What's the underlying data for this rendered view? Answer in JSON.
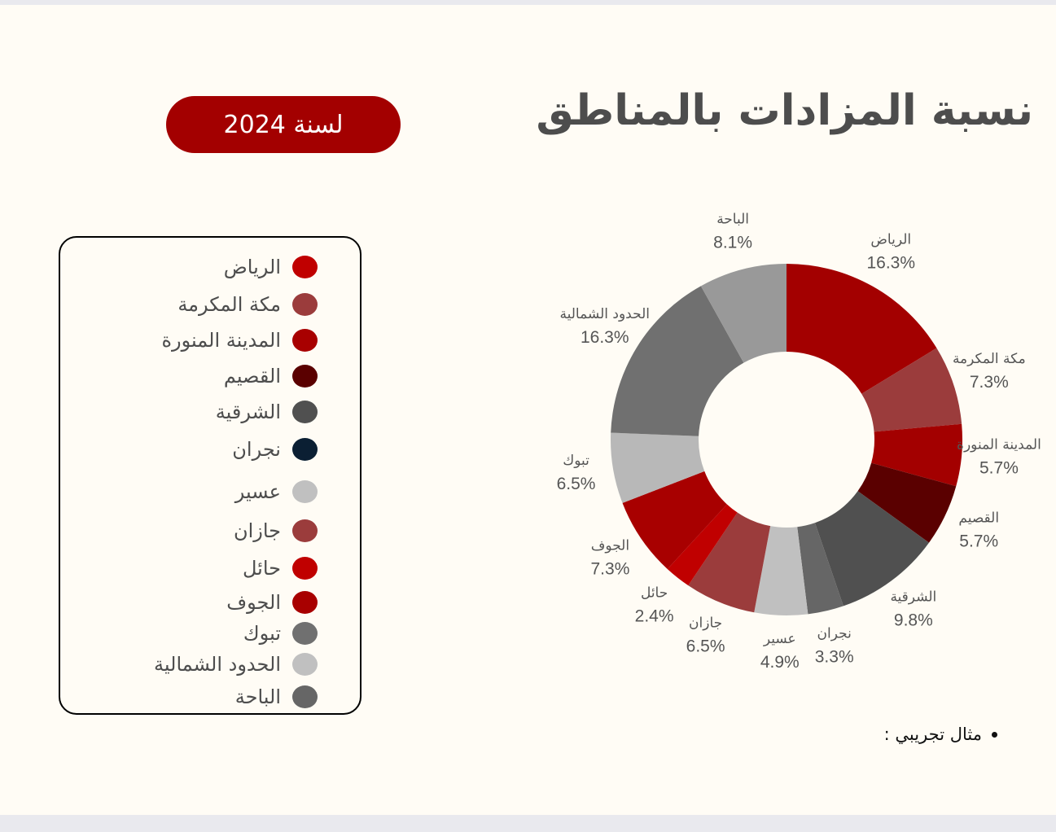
{
  "title": "نسبة المزادات  بالمناطق",
  "year_badge": "لسنة 2024",
  "note": "مثال تجريبي :",
  "legend": [
    {
      "label": "الرياض",
      "color": "#c00000"
    },
    {
      "label": "مكة المكرمة",
      "color": "#9b3c3c"
    },
    {
      "label": "المدينة المنورة",
      "color": "#a80000"
    },
    {
      "label": "القصيم",
      "color": "#5a0000"
    },
    {
      "label": "الشرقية",
      "color": "#505050"
    },
    {
      "label": "نجران",
      "color": "#0b1f33"
    },
    {
      "label": "عسير",
      "color": "#c0c0c0"
    },
    {
      "label": "جازان",
      "color": "#9b3c3c"
    },
    {
      "label": "حائل",
      "color": "#c00000"
    },
    {
      "label": "الجوف",
      "color": "#a80000"
    },
    {
      "label": "تبوك",
      "color": "#707070"
    },
    {
      "label": "الحدود الشمالية",
      "color": "#c0c0c0"
    },
    {
      "label": "الباحة",
      "color": "#666666"
    }
  ],
  "chart_data": {
    "type": "pie",
    "donut": true,
    "start": "top",
    "direction": "clockwise",
    "unit": "%",
    "categories": [
      "الرياض",
      "مكة المكرمة",
      "المدينة المنورة",
      "القصيم",
      "الشرقية",
      "نجران",
      "عسير",
      "جازان",
      "حائل",
      "الجوف",
      "تبوك",
      "الحدود الشمالية",
      "الباحة"
    ],
    "values": [
      16.3,
      7.3,
      5.7,
      5.7,
      9.8,
      3.3,
      4.9,
      6.5,
      2.4,
      7.3,
      6.5,
      16.3,
      8.1
    ],
    "labels": [
      "16.3%",
      "7.3%",
      "5.7%",
      "5.7%",
      "9.8%",
      "3.3%",
      "4.9%",
      "6.5%",
      "2.4%",
      "7.3%",
      "6.5%",
      "16.3%",
      "8.1%"
    ],
    "colors": [
      "#a30000",
      "#9b3c3c",
      "#a30000",
      "#5a0000",
      "#505050",
      "#666666",
      "#c0c0c0",
      "#9b3c3c",
      "#c00000",
      "#a80000",
      "#b8b8b8",
      "#707070",
      "#999999"
    ]
  }
}
